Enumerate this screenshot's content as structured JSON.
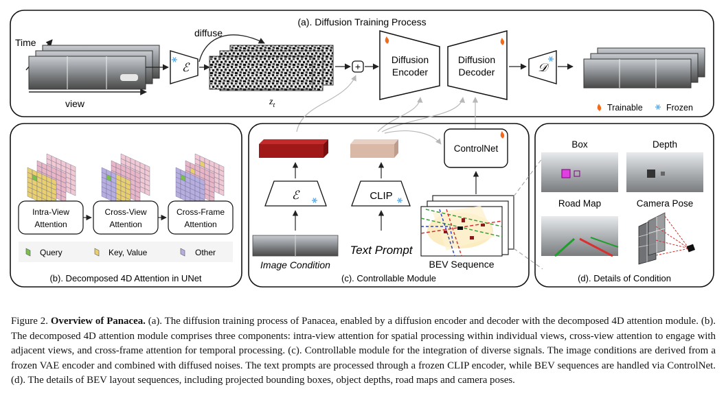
{
  "training": {
    "title": "(a). Diffusion Training Process",
    "time_label": "Time",
    "view_label": "view",
    "diffuse_label": "diffuse",
    "encoder_symbol": "ℰ",
    "decoder_symbol": "𝒟",
    "latent_label": "z",
    "latent_sub": "t",
    "plus_symbol": "+",
    "diffusion_encoder": [
      "Diffusion",
      "Encoder"
    ],
    "diffusion_decoder": [
      "Diffusion",
      "Decoder"
    ],
    "legend_trainable": "Trainable",
    "legend_frozen": "Frozen"
  },
  "attention": {
    "title": "(b). Decomposed 4D Attention in UNet",
    "stages": [
      [
        "Intra-View",
        "Attention"
      ],
      [
        "Cross-View",
        "Attention"
      ],
      [
        "Cross-Frame",
        "Attention"
      ]
    ],
    "legend": [
      "Query",
      "Key, Value",
      "Other"
    ]
  },
  "controllable": {
    "title": "(c). Controllable Module",
    "encoder_symbol": "ℰ",
    "clip_label": "CLIP",
    "controlnet_label": "ControlNet",
    "image_condition": "Image Condition",
    "text_prompt": "Text Prompt",
    "bev_sequence": "BEV Sequence"
  },
  "condition": {
    "title": "(d). Details of Condition",
    "labels": [
      "Box",
      "Depth",
      "Road Map",
      "Camera Pose"
    ]
  },
  "caption": {
    "figure_label": "Figure 2.",
    "title": "Overview of Panacea.",
    "text": " (a). The diffusion training process of Panacea, enabled by a diffusion encoder and decoder with the decomposed 4D attention module. (b). The decomposed 4D attention module comprises three components: intra-view attention for spatial processing within individual views, cross-view attention to engage with adjacent views, and cross-frame attention for temporal processing. (c). Controllable module for the integration of diverse signals. The image conditions are derived from a frozen VAE encoder and combined with diffused noises. The text prompts are processed through a frozen CLIP encoder, while BEV sequences are handled via ControlNet. (d). The details of BEV layout sequences, including projected bounding boxes, object depths, road maps and camera poses."
  },
  "colors": {
    "query": "#7bbf4f",
    "key_value": "#e8cf6f",
    "other": "#b7aee0",
    "fire": "#f26b1d",
    "snow": "#5fb2ec",
    "image_feature": "#a01818",
    "text_feature": "#d9b8a8"
  }
}
